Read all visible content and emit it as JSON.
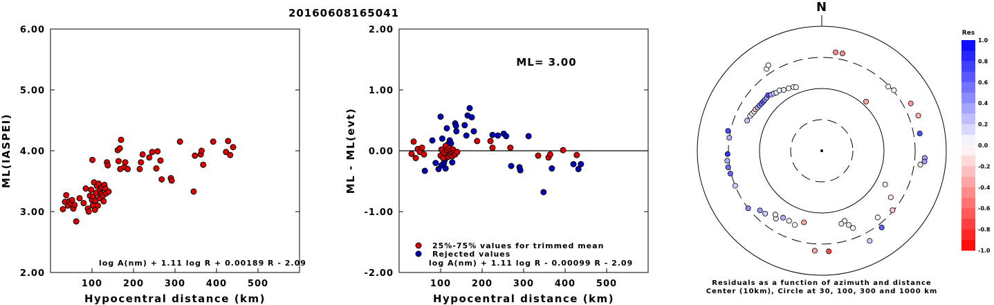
{
  "title": "20160608165041",
  "colors": {
    "accepted": "#dd0000",
    "rejected": "#0000bb",
    "marker_edge": "#000000"
  },
  "chart_data": [
    {
      "type": "scatter",
      "name": "ml-vs-distance",
      "xlabel": "Hypocentral distance (km)",
      "ylabel": "ML(IASPEI)",
      "xlim": [
        0,
        600
      ],
      "ylim": [
        2.0,
        6.0
      ],
      "xticks": [
        "100",
        "200",
        "300",
        "400",
        "500"
      ],
      "yticks": [
        "2.00",
        "3.00",
        "4.00",
        "5.00",
        "6.00"
      ],
      "formula": "log A(nm) + 1.11 log R + 0.00189 R - 2.09",
      "points": [
        [
          30,
          3.04
        ],
        [
          35,
          3.16
        ],
        [
          38,
          3.27
        ],
        [
          42,
          3.1
        ],
        [
          45,
          3.17
        ],
        [
          50,
          3.13
        ],
        [
          52,
          3.19
        ],
        [
          55,
          3.05
        ],
        [
          58,
          3.11
        ],
        [
          62,
          2.84
        ],
        [
          70,
          3.22
        ],
        [
          80,
          3.14
        ],
        [
          85,
          3.38
        ],
        [
          90,
          3.05
        ],
        [
          92,
          3.0
        ],
        [
          95,
          3.26
        ],
        [
          98,
          3.36
        ],
        [
          100,
          3.19
        ],
        [
          101,
          3.85
        ],
        [
          102,
          3.1
        ],
        [
          103,
          3.25
        ],
        [
          105,
          3.48
        ],
        [
          107,
          3.03
        ],
        [
          108,
          3.18
        ],
        [
          110,
          3.31
        ],
        [
          112,
          3.42
        ],
        [
          114,
          3.1
        ],
        [
          116,
          3.46
        ],
        [
          118,
          3.22
        ],
        [
          120,
          3.36
        ],
        [
          122,
          3.29
        ],
        [
          124,
          3.39
        ],
        [
          126,
          3.26
        ],
        [
          128,
          3.17
        ],
        [
          130,
          3.44
        ],
        [
          132,
          3.38
        ],
        [
          134,
          3.3
        ],
        [
          136,
          3.81
        ],
        [
          138,
          3.76
        ],
        [
          140,
          3.33
        ],
        [
          162,
          4.01
        ],
        [
          164,
          3.83
        ],
        [
          167,
          4.04
        ],
        [
          168,
          3.7
        ],
        [
          170,
          4.18
        ],
        [
          178,
          3.73
        ],
        [
          180,
          3.81
        ],
        [
          186,
          3.7
        ],
        [
          215,
          3.7
        ],
        [
          218,
          3.81
        ],
        [
          222,
          3.94
        ],
        [
          238,
          3.89
        ],
        [
          245,
          3.98
        ],
        [
          255,
          3.71
        ],
        [
          258,
          3.99
        ],
        [
          265,
          3.84
        ],
        [
          268,
          3.53
        ],
        [
          290,
          3.55
        ],
        [
          292,
          3.51
        ],
        [
          312,
          4.15
        ],
        [
          345,
          3.33
        ],
        [
          348,
          3.92
        ],
        [
          362,
          3.94
        ],
        [
          364,
          4.0
        ],
        [
          368,
          3.77
        ],
        [
          392,
          4.15
        ],
        [
          423,
          3.98
        ],
        [
          428,
          4.16
        ],
        [
          433,
          3.93
        ],
        [
          440,
          4.06
        ]
      ]
    },
    {
      "type": "scatter",
      "name": "residual-vs-distance",
      "xlabel": "Hypocentral distance (km)",
      "ylabel": "ML - ML(evt)",
      "xlim": [
        0,
        600
      ],
      "ylim": [
        -2.0,
        2.0
      ],
      "xticks": [
        "100",
        "200",
        "300",
        "400",
        "500"
      ],
      "yticks": [
        "-2.00",
        "-1.00",
        "0.00",
        "1.00",
        "2.00"
      ],
      "annotation": "ML= 3.00",
      "formula": "log A(nm) + 1.11 log R - 0.00099 R - 2.09",
      "legend": [
        {
          "label": "25%-75% values for trimmed mean",
          "color": "#dd0000"
        },
        {
          "label": "Rejected values",
          "color": "#0000bb"
        }
      ],
      "accepted": [
        [
          30,
          -0.05
        ],
        [
          35,
          0.15
        ],
        [
          40,
          -0.12
        ],
        [
          45,
          0.03
        ],
        [
          50,
          -0.02
        ],
        [
          55,
          0.05
        ],
        [
          60,
          -0.06
        ],
        [
          100,
          -0.08
        ],
        [
          102,
          0.02
        ],
        [
          106,
          -0.12
        ],
        [
          108,
          -0.03
        ],
        [
          112,
          0.08
        ],
        [
          114,
          -0.05
        ],
        [
          116,
          0.01
        ],
        [
          118,
          -0.1
        ],
        [
          120,
          0.04
        ],
        [
          122,
          -0.06
        ],
        [
          124,
          0.0
        ],
        [
          126,
          -0.04
        ],
        [
          128,
          -0.09
        ],
        [
          130,
          0.02
        ],
        [
          132,
          -0.03
        ],
        [
          135,
          -0.06
        ],
        [
          140,
          -0.02
        ],
        [
          188,
          0.16
        ],
        [
          220,
          0.16
        ],
        [
          225,
          0.05
        ],
        [
          268,
          0.05
        ],
        [
          335,
          -0.08
        ],
        [
          360,
          -0.11
        ],
        [
          364,
          -0.06
        ],
        [
          395,
          0.01
        ],
        [
          428,
          -0.07
        ]
      ],
      "rejected": [
        [
          62,
          -0.33
        ],
        [
          80,
          0.17
        ],
        [
          88,
          -0.2
        ],
        [
          95,
          -0.3
        ],
        [
          100,
          0.56
        ],
        [
          102,
          -0.24
        ],
        [
          104,
          0.2
        ],
        [
          108,
          -0.2
        ],
        [
          110,
          -0.15
        ],
        [
          112,
          -0.29
        ],
        [
          115,
          0.37
        ],
        [
          118,
          0.11
        ],
        [
          122,
          0.17
        ],
        [
          125,
          0.12
        ],
        [
          128,
          -0.19
        ],
        [
          135,
          0.45
        ],
        [
          137,
          0.41
        ],
        [
          138,
          0.32
        ],
        [
          158,
          0.42
        ],
        [
          162,
          0.25
        ],
        [
          165,
          0.58
        ],
        [
          170,
          0.7
        ],
        [
          175,
          0.55
        ],
        [
          180,
          0.32
        ],
        [
          225,
          0.26
        ],
        [
          238,
          0.25
        ],
        [
          252,
          0.28
        ],
        [
          258,
          0.24
        ],
        [
          270,
          -0.25
        ],
        [
          290,
          -0.27
        ],
        [
          292,
          -0.32
        ],
        [
          312,
          0.24
        ],
        [
          348,
          -0.68
        ],
        [
          368,
          -0.29
        ],
        [
          420,
          -0.22
        ],
        [
          432,
          -0.3
        ],
        [
          438,
          -0.22
        ]
      ]
    },
    {
      "type": "scatter",
      "name": "residual-azimuth-polar",
      "north_label": "N",
      "caption_line1": "Residuals as a function of azimuth and distance",
      "caption_line2": "Center (10km), Circle at 30, 100, 300 and 1000 km",
      "colorbar_title": "Res",
      "colorbar_ticks": [
        "1.0",
        "0.8",
        "0.6",
        "0.4",
        "0.2",
        "0.0",
        "-0.2",
        "-0.4",
        "-0.6",
        "-0.8",
        "-1.0"
      ],
      "points_az_dist_res": [
        [
          8,
          380,
          -0.45
        ],
        [
          12,
          380,
          -0.45
        ],
        [
          42,
          115,
          -0.35
        ],
        [
          46,
          290,
          0.05
        ],
        [
          50,
          310,
          0.02
        ],
        [
          62,
          400,
          -0.4
        ],
        [
          70,
          430,
          -0.3
        ],
        [
          80,
          380,
          0.7
        ],
        [
          94,
          440,
          0.35
        ],
        [
          96,
          440,
          0.4
        ],
        [
          98,
          380,
          -0.06
        ],
        [
          118,
          140,
          -0.1
        ],
        [
          124,
          210,
          -0.12
        ],
        [
          130,
          290,
          -0.22
        ],
        [
          140,
          240,
          0.03
        ],
        [
          142,
          350,
          0.62
        ],
        [
          152,
          420,
          0.2
        ],
        [
          158,
          210,
          0.02
        ],
        [
          160,
          180,
          0.08
        ],
        [
          162,
          150,
          0.0
        ],
        [
          165,
          160,
          0.1
        ],
        [
          176,
          400,
          -0.7
        ],
        [
          184,
          390,
          -0.35
        ],
        [
          194,
          150,
          -0.35
        ],
        [
          200,
          180,
          0.02
        ],
        [
          205,
          170,
          -0.05
        ],
        [
          210,
          170,
          0.3
        ],
        [
          214,
          200,
          0.1
        ],
        [
          216,
          180,
          -0.1
        ],
        [
          222,
          220,
          0.2
        ],
        [
          226,
          230,
          0.4
        ],
        [
          232,
          300,
          0.45
        ],
        [
          248,
          300,
          0.2
        ],
        [
          256,
          310,
          0.6
        ],
        [
          260,
          320,
          0.55
        ],
        [
          264,
          320,
          0.3
        ],
        [
          268,
          310,
          0.8
        ],
        [
          278,
          300,
          0.3
        ],
        [
          282,
          330,
          0.7
        ],
        [
          292,
          190,
          0.22
        ],
        [
          296,
          185,
          0.04
        ],
        [
          298,
          180,
          -0.06
        ],
        [
          300,
          175,
          0.1
        ],
        [
          302,
          175,
          -0.25
        ],
        [
          304,
          170,
          0.3
        ],
        [
          306,
          168,
          0.45
        ],
        [
          308,
          166,
          0.55
        ],
        [
          310,
          165,
          0.65
        ],
        [
          312,
          165,
          0.45
        ],
        [
          314,
          165,
          0.35
        ],
        [
          316,
          170,
          0.7
        ],
        [
          318,
          160,
          0.3
        ],
        [
          320,
          155,
          0.2
        ],
        [
          322,
          150,
          0.1
        ],
        [
          325,
          150,
          0.05
        ],
        [
          328,
          140,
          0.08
        ],
        [
          332,
          135,
          0.0
        ],
        [
          336,
          130,
          0.02
        ],
        [
          338,
          125,
          -0.05
        ],
        [
          326,
          370,
          0.05
        ],
        [
          328,
          400,
          0.02
        ]
      ]
    }
  ]
}
